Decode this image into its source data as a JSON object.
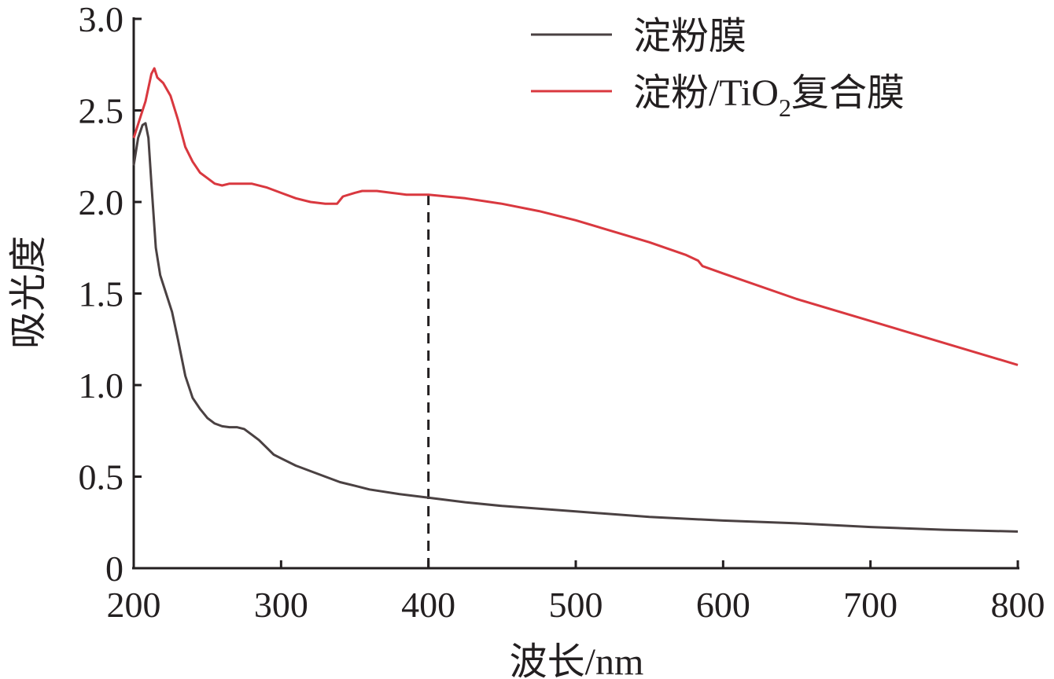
{
  "chart_data": {
    "type": "line",
    "xlabel": "波长/nm",
    "ylabel": "吸光度",
    "xlim": [
      200,
      800
    ],
    "ylim": [
      0,
      3.0
    ],
    "x_ticks": [
      "200",
      "300",
      "400",
      "500",
      "600",
      "700",
      "800"
    ],
    "y_ticks": [
      "0",
      "0.5",
      "1.0",
      "1.5",
      "2.0",
      "2.5",
      "3.0"
    ],
    "legend_position": "top-right",
    "grid": false,
    "annotation": {
      "type": "vertical-dashed-line",
      "x": 400,
      "y_top": 2.05
    },
    "series": [
      {
        "name": "淀粉膜",
        "color": "#4a4142",
        "points": [
          [
            200,
            2.2
          ],
          [
            203,
            2.35
          ],
          [
            206,
            2.42
          ],
          [
            208,
            2.43
          ],
          [
            210,
            2.35
          ],
          [
            212,
            2.1
          ],
          [
            215,
            1.75
          ],
          [
            218,
            1.6
          ],
          [
            222,
            1.5
          ],
          [
            226,
            1.4
          ],
          [
            230,
            1.25
          ],
          [
            235,
            1.05
          ],
          [
            240,
            0.93
          ],
          [
            245,
            0.87
          ],
          [
            250,
            0.82
          ],
          [
            255,
            0.79
          ],
          [
            260,
            0.775
          ],
          [
            265,
            0.77
          ],
          [
            270,
            0.77
          ],
          [
            275,
            0.76
          ],
          [
            280,
            0.73
          ],
          [
            285,
            0.7
          ],
          [
            290,
            0.66
          ],
          [
            295,
            0.62
          ],
          [
            300,
            0.6
          ],
          [
            310,
            0.56
          ],
          [
            320,
            0.53
          ],
          [
            330,
            0.5
          ],
          [
            340,
            0.47
          ],
          [
            350,
            0.45
          ],
          [
            360,
            0.43
          ],
          [
            380,
            0.405
          ],
          [
            400,
            0.385
          ],
          [
            425,
            0.36
          ],
          [
            450,
            0.34
          ],
          [
            475,
            0.325
          ],
          [
            500,
            0.31
          ],
          [
            550,
            0.28
          ],
          [
            600,
            0.26
          ],
          [
            650,
            0.245
          ],
          [
            700,
            0.225
          ],
          [
            750,
            0.21
          ],
          [
            800,
            0.2
          ]
        ]
      },
      {
        "name": "淀粉/TiO2复合膜",
        "color": "#d9383f",
        "points": [
          [
            200,
            2.35
          ],
          [
            204,
            2.45
          ],
          [
            208,
            2.55
          ],
          [
            212,
            2.7
          ],
          [
            214,
            2.73
          ],
          [
            216,
            2.68
          ],
          [
            220,
            2.65
          ],
          [
            225,
            2.58
          ],
          [
            230,
            2.45
          ],
          [
            235,
            2.3
          ],
          [
            240,
            2.22
          ],
          [
            245,
            2.16
          ],
          [
            250,
            2.13
          ],
          [
            255,
            2.1
          ],
          [
            260,
            2.09
          ],
          [
            265,
            2.1
          ],
          [
            270,
            2.1
          ],
          [
            280,
            2.1
          ],
          [
            290,
            2.08
          ],
          [
            300,
            2.05
          ],
          [
            310,
            2.02
          ],
          [
            320,
            2.0
          ],
          [
            330,
            1.99
          ],
          [
            338,
            1.99
          ],
          [
            342,
            2.03
          ],
          [
            350,
            2.05
          ],
          [
            355,
            2.06
          ],
          [
            365,
            2.06
          ],
          [
            375,
            2.05
          ],
          [
            385,
            2.04
          ],
          [
            400,
            2.04
          ],
          [
            425,
            2.02
          ],
          [
            450,
            1.99
          ],
          [
            475,
            1.95
          ],
          [
            500,
            1.9
          ],
          [
            525,
            1.84
          ],
          [
            550,
            1.78
          ],
          [
            575,
            1.71
          ],
          [
            583,
            1.68
          ],
          [
            586,
            1.65
          ],
          [
            600,
            1.61
          ],
          [
            650,
            1.47
          ],
          [
            700,
            1.35
          ],
          [
            750,
            1.23
          ],
          [
            800,
            1.11
          ]
        ]
      }
    ]
  }
}
